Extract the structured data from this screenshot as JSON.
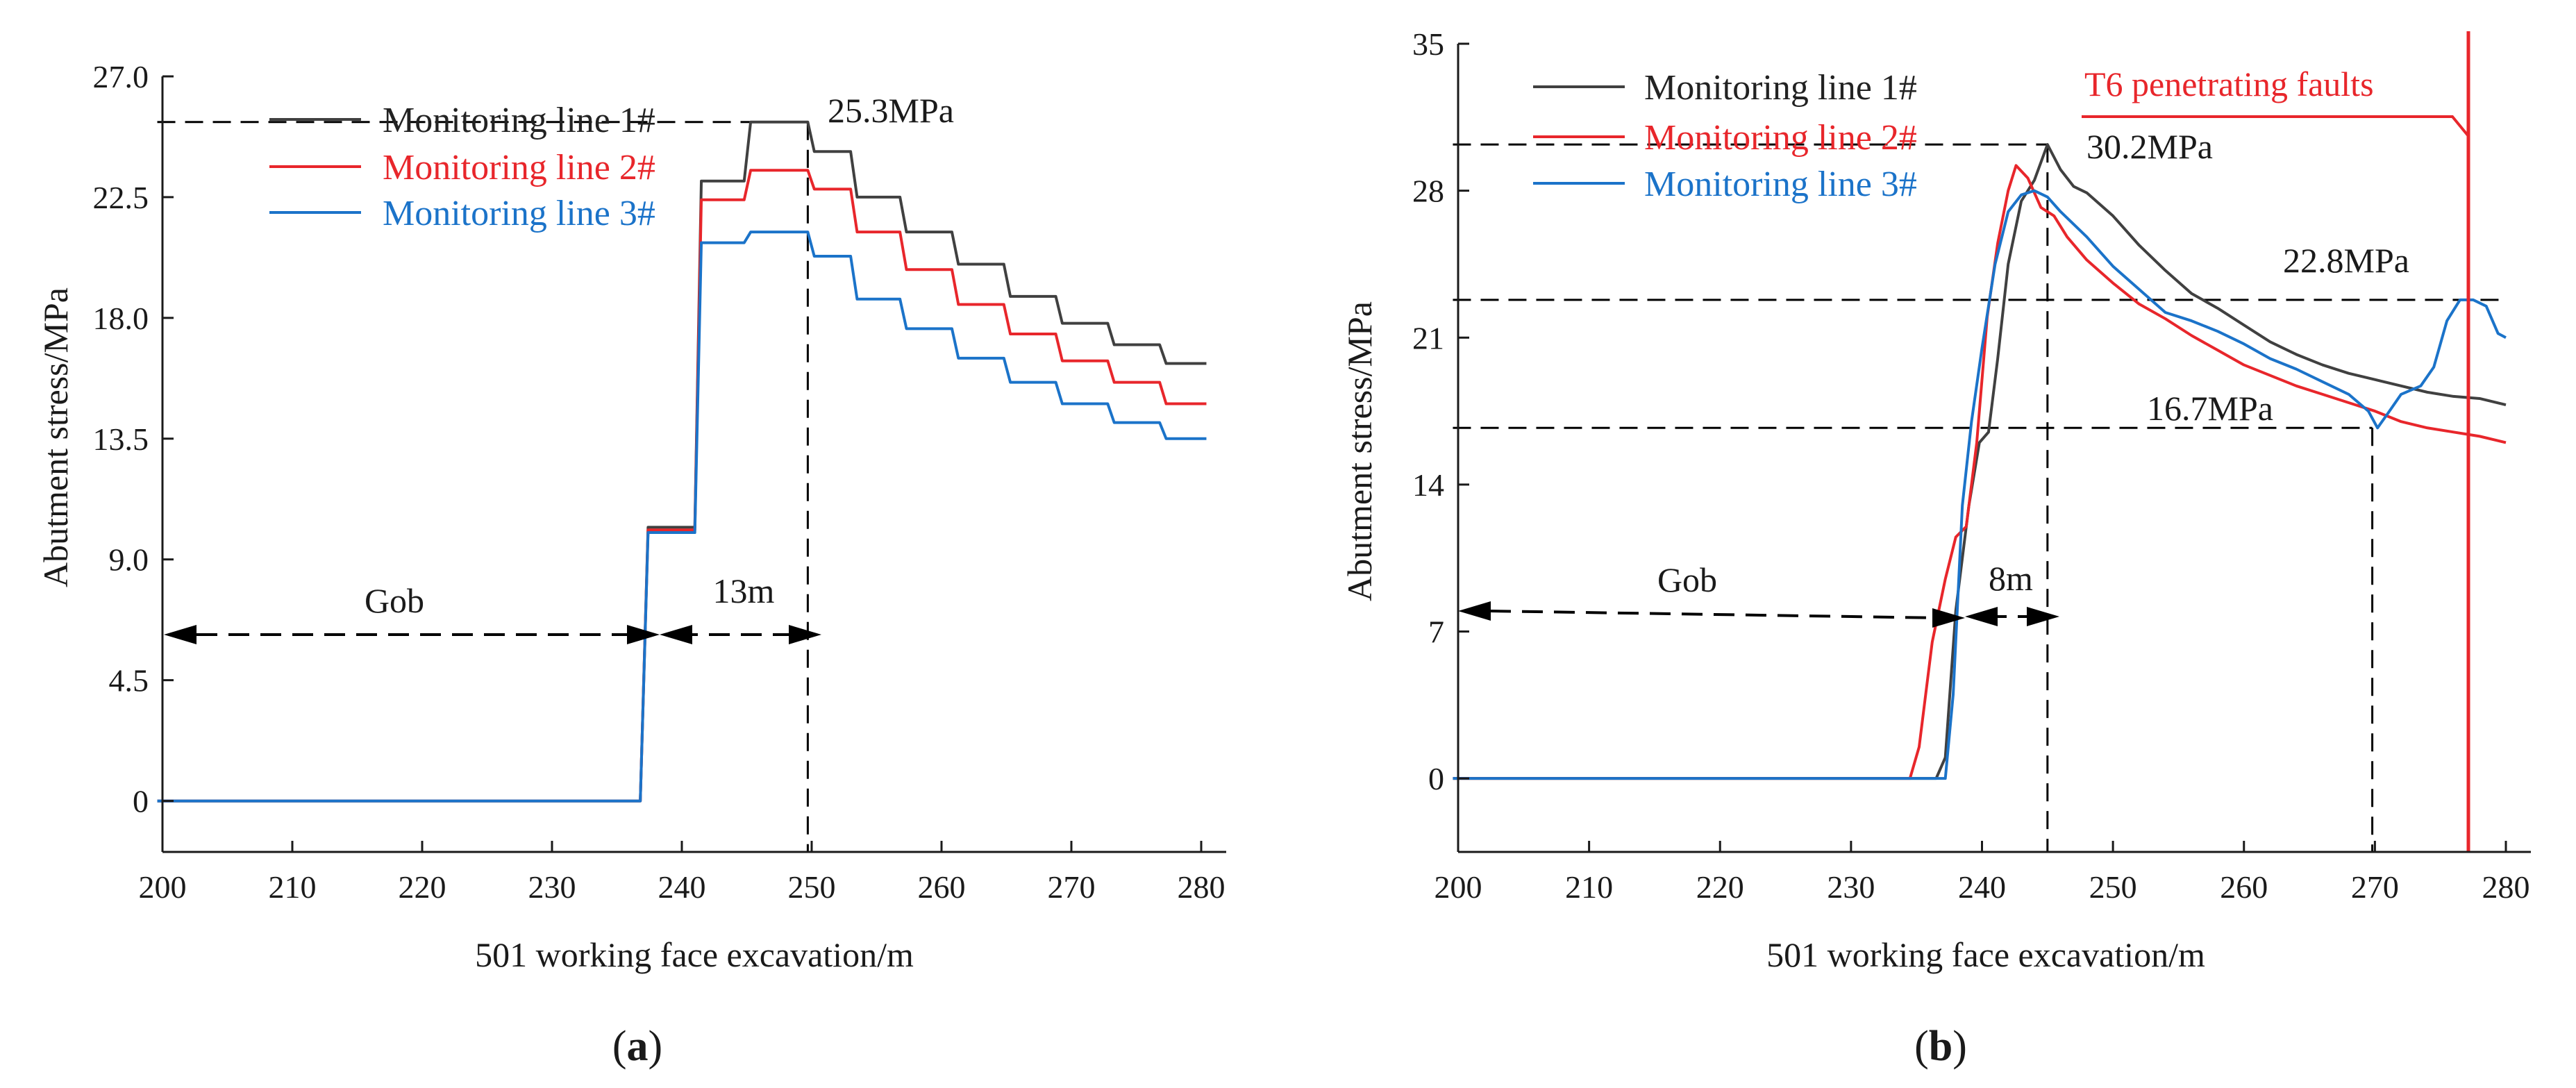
{
  "colors": {
    "line1": "#404040",
    "line2": "#e8262b",
    "line3": "#1b73c9",
    "fault": "#e8262b",
    "axis": "#1a1a1a"
  },
  "panel_labels": [
    "a",
    "b"
  ],
  "chart_data": [
    {
      "type": "line",
      "panel": "a",
      "xlabel": "501 working face excavation/m",
      "ylabel": "Abutment stress/MPa",
      "xlim": [
        200,
        280
      ],
      "ylim": [
        -1.9,
        27.0
      ],
      "xticks": [
        200,
        210,
        220,
        230,
        240,
        250,
        260,
        270,
        280
      ],
      "yticks": [
        0,
        4.5,
        9.0,
        13.5,
        18.0,
        22.5,
        27.0
      ],
      "ytick_labels": [
        "0",
        "4.5",
        "9.0",
        "13.5",
        "18.0",
        "22.5",
        "27.0"
      ],
      "legend": "top-left",
      "series": [
        {
          "name": "Monitoring line 1#",
          "color": "#404040",
          "x": [
            199.6,
            236.8,
            237.4,
            241.0,
            241.5,
            244.8,
            245.3,
            249.7,
            250.2,
            253.0,
            253.5,
            256.8,
            257.3,
            260.8,
            261.3,
            264.8,
            265.3,
            268.8,
            269.3,
            272.8,
            273.3,
            276.8,
            277.3,
            280.4
          ],
          "y": [
            0,
            0,
            10.2,
            10.2,
            23.1,
            23.1,
            25.3,
            25.3,
            24.2,
            24.2,
            22.5,
            22.5,
            21.2,
            21.2,
            20.0,
            20.0,
            18.8,
            18.8,
            17.8,
            17.8,
            17.0,
            17.0,
            16.3,
            16.3
          ]
        },
        {
          "name": "Monitoring line 2#",
          "color": "#e8262b",
          "x": [
            199.6,
            236.8,
            237.4,
            241.0,
            241.5,
            244.8,
            245.3,
            249.7,
            250.2,
            253.0,
            253.5,
            256.8,
            257.3,
            260.8,
            261.3,
            264.8,
            265.3,
            268.8,
            269.3,
            272.8,
            273.3,
            276.8,
            277.3,
            280.4
          ],
          "y": [
            0,
            0,
            10.1,
            10.1,
            22.4,
            22.4,
            23.5,
            23.5,
            22.8,
            22.8,
            21.2,
            21.2,
            19.8,
            19.8,
            18.5,
            18.5,
            17.4,
            17.4,
            16.4,
            16.4,
            15.6,
            15.6,
            14.8,
            14.8
          ]
        },
        {
          "name": "Monitoring line 3#",
          "color": "#1b73c9",
          "x": [
            199.6,
            236.8,
            237.4,
            241.0,
            241.5,
            244.8,
            245.3,
            249.7,
            250.2,
            253.0,
            253.5,
            256.8,
            257.3,
            260.8,
            261.3,
            264.8,
            265.3,
            268.8,
            269.3,
            272.8,
            273.3,
            276.8,
            277.3,
            280.4
          ],
          "y": [
            0,
            0,
            10.0,
            10.0,
            20.8,
            20.8,
            21.2,
            21.2,
            20.3,
            20.3,
            18.7,
            18.7,
            17.6,
            17.6,
            16.5,
            16.5,
            15.6,
            15.6,
            14.8,
            14.8,
            14.1,
            14.1,
            13.5,
            13.5
          ]
        }
      ],
      "annotations": [
        {
          "text": "25.3MPa"
        },
        {
          "text": "Gob"
        },
        {
          "text": "13m"
        }
      ]
    },
    {
      "type": "line",
      "panel": "b",
      "xlabel": "501 working face excavation/m",
      "ylabel": "Abutment stress/MPa",
      "xlim": [
        200,
        280
      ],
      "ylim": [
        -3.5,
        35
      ],
      "xticks": [
        200,
        210,
        220,
        230,
        240,
        250,
        260,
        270,
        280
      ],
      "yticks": [
        0,
        7,
        14,
        21,
        28,
        35
      ],
      "ytick_labels": [
        "0",
        "7",
        "14",
        "21",
        "28",
        "35"
      ],
      "legend": "top-left",
      "series": [
        {
          "name": "Monitoring line 1#",
          "color": "#404040",
          "x": [
            199.6,
            236.5,
            237.2,
            238.0,
            239.0,
            239.8,
            240.5,
            241.2,
            242.0,
            243.0,
            244.0,
            245.0,
            246.0,
            247.0,
            248.0,
            250.0,
            252.0,
            254.0,
            256.0,
            258.0,
            260.0,
            262.0,
            264.0,
            266.0,
            268.0,
            270.0,
            272.0,
            274.0,
            276.0,
            278.0,
            280.0
          ],
          "y": [
            0,
            0,
            1.0,
            8.0,
            13.0,
            16.0,
            16.5,
            20.0,
            24.5,
            27.5,
            28.5,
            30.2,
            29.0,
            28.2,
            27.9,
            26.8,
            25.4,
            24.2,
            23.1,
            22.4,
            21.6,
            20.8,
            20.2,
            19.7,
            19.3,
            19.0,
            18.7,
            18.4,
            18.2,
            18.1,
            17.8
          ]
        },
        {
          "name": "Monitoring line 2#",
          "color": "#e8262b",
          "x": [
            199.6,
            234.5,
            235.2,
            236.2,
            237.2,
            238.0,
            238.8,
            239.6,
            240.4,
            241.2,
            242.0,
            242.6,
            243.5,
            244.5,
            245.5,
            246.5,
            248.0,
            250.0,
            252.0,
            254.0,
            256.0,
            258.0,
            260.0,
            262.0,
            264.0,
            266.0,
            268.0,
            270.0,
            272.0,
            274.0,
            276.0,
            278.0,
            280.0
          ],
          "y": [
            0,
            0,
            1.5,
            6.5,
            9.5,
            11.5,
            12.0,
            16.0,
            22.0,
            25.5,
            28.0,
            29.2,
            28.6,
            27.2,
            26.8,
            25.8,
            24.7,
            23.6,
            22.6,
            21.9,
            21.1,
            20.4,
            19.7,
            19.2,
            18.7,
            18.3,
            17.9,
            17.5,
            17.0,
            16.7,
            16.5,
            16.3,
            16.0
          ]
        },
        {
          "name": "Monitoring line 3#",
          "color": "#1b73c9",
          "x": [
            199.6,
            237.2,
            237.8,
            238.5,
            239.2,
            240.0,
            241.0,
            242.0,
            243.0,
            244.0,
            245.0,
            246.0,
            248.0,
            250.0,
            252.0,
            254.0,
            256.0,
            258.0,
            260.0,
            262.0,
            264.0,
            266.0,
            268.0,
            269.5,
            270.2,
            271.0,
            272.0,
            273.5,
            274.5,
            275.5,
            276.5,
            277.5,
            278.5,
            279.4,
            280.0
          ],
          "y": [
            0,
            0,
            4.0,
            13.0,
            17.0,
            20.5,
            24.5,
            27.0,
            27.8,
            28.0,
            27.7,
            27.0,
            25.8,
            24.4,
            23.3,
            22.2,
            21.8,
            21.3,
            20.7,
            20.0,
            19.5,
            18.9,
            18.3,
            17.5,
            16.7,
            17.4,
            18.3,
            18.7,
            19.6,
            21.8,
            22.8,
            22.8,
            22.5,
            21.2,
            21.0
          ]
        }
      ],
      "annotations": [
        {
          "text": "T6 penetrating faults"
        },
        {
          "text": "30.2MPa"
        },
        {
          "text": "22.8MPa"
        },
        {
          "text": "16.7MPa"
        },
        {
          "text": "Gob"
        },
        {
          "text": "8m"
        }
      ]
    }
  ]
}
